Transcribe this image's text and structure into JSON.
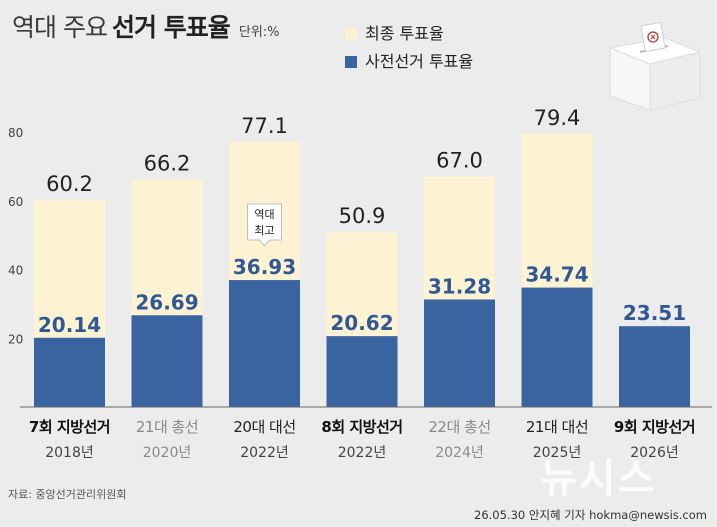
{
  "header": {
    "title_part1": "역대 주요",
    "title_part2": "선거 투표율",
    "unit": "단위:%"
  },
  "legend": {
    "final_label": "최종 투표율",
    "early_label": "사전선거 투표율"
  },
  "colors": {
    "final": "#fdf3d3",
    "early": "#3a64a0",
    "early_label": "#2f5894",
    "highlight_label": "#111111",
    "dim_label": "#8a8a8a",
    "background": "#ececec"
  },
  "icons": [
    "ballot-box-icon"
  ],
  "chart_data": {
    "type": "bar",
    "title": "역대 주요 선거 투표율",
    "unit": "단위:%",
    "ylim": [
      0,
      85
    ],
    "yticks": [
      20,
      40,
      60,
      80
    ],
    "grid": false,
    "legend_position": "top-right",
    "categories": [
      {
        "name": "7회 지방선거",
        "year": "2018년",
        "style": "bold"
      },
      {
        "name": "21대 총선",
        "year": "2020년",
        "style": "dim"
      },
      {
        "name": "20대 대선",
        "year": "2022년",
        "style": "normal"
      },
      {
        "name": "8회 지방선거",
        "year": "2022년",
        "style": "bold"
      },
      {
        "name": "22대 총선",
        "year": "2024년",
        "style": "dim"
      },
      {
        "name": "21대 대선",
        "year": "2025년",
        "style": "normal"
      },
      {
        "name": "9회 지방선거",
        "year": "2026년",
        "style": "bold"
      }
    ],
    "series": [
      {
        "name": "최종 투표율",
        "values": [
          60.2,
          66.2,
          77.1,
          50.9,
          67.0,
          79.4,
          null
        ]
      },
      {
        "name": "사전선거 투표율",
        "values": [
          20.14,
          26.69,
          36.93,
          20.62,
          31.28,
          34.74,
          23.51
        ]
      }
    ],
    "value_labels_final": [
      "60.2",
      "66.2",
      "77.1",
      "50.9",
      "67.0",
      "79.4",
      ""
    ],
    "value_labels_early": [
      "20.14",
      "26.69",
      "36.93",
      "20.62",
      "31.28",
      "34.74",
      "23.51"
    ],
    "annotation": {
      "category_index": 2,
      "line1": "역대",
      "line2": "최고"
    }
  },
  "footer": {
    "source": "자료: 중앙선거관리위원회",
    "credit": "26.05.30 안지혜 기자 hokma@newsis.com",
    "watermark": "뉴시스"
  }
}
